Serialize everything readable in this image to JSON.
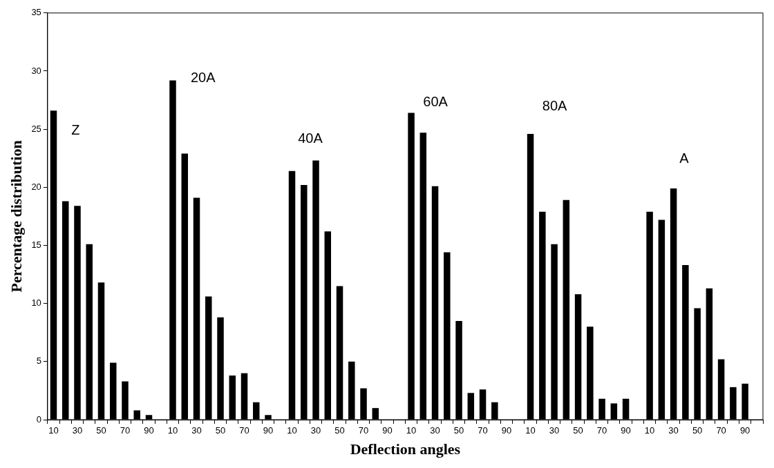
{
  "chart_data": {
    "type": "bar",
    "xlabel": "Deflection angles",
    "ylabel": "Percentage distribution",
    "categories": [
      "10",
      null,
      "30",
      null,
      "50",
      null,
      "70",
      null,
      "90",
      null,
      "10",
      null,
      "30",
      null,
      "50",
      null,
      "70",
      null,
      "90",
      null,
      "10",
      null,
      "30",
      null,
      "50",
      null,
      "70",
      null,
      "90",
      null,
      "10",
      null,
      "30",
      null,
      "50",
      null,
      "70",
      null,
      "90",
      null,
      "10",
      null,
      "30",
      null,
      "50",
      null,
      "70",
      null,
      "90",
      null,
      "10",
      null,
      "30",
      null,
      "50",
      null,
      "70",
      null,
      "90",
      null
    ],
    "values": [
      26.6,
      18.8,
      18.4,
      15.1,
      11.8,
      4.9,
      3.3,
      0.8,
      0.4,
      null,
      29.2,
      22.9,
      19.1,
      10.6,
      8.8,
      3.8,
      4.0,
      1.5,
      0.4,
      null,
      21.4,
      20.2,
      22.3,
      16.2,
      11.5,
      5.0,
      2.7,
      1.0,
      null,
      null,
      26.4,
      24.7,
      20.1,
      14.4,
      8.5,
      2.3,
      2.6,
      1.5,
      null,
      null,
      24.6,
      17.9,
      15.1,
      18.9,
      10.8,
      8.0,
      1.8,
      1.4,
      1.8,
      null,
      17.9,
      17.2,
      19.9,
      13.3,
      9.6,
      11.3,
      5.2,
      2.8,
      3.1,
      null
    ],
    "color": "#000000",
    "ylim": [
      0,
      35
    ],
    "yticks": [
      0,
      5,
      10,
      15,
      20,
      25,
      30,
      35
    ],
    "grid": false,
    "legend": false,
    "annotations": [
      "Z",
      "20A",
      "40A",
      "60A",
      "80A",
      "A"
    ]
  }
}
